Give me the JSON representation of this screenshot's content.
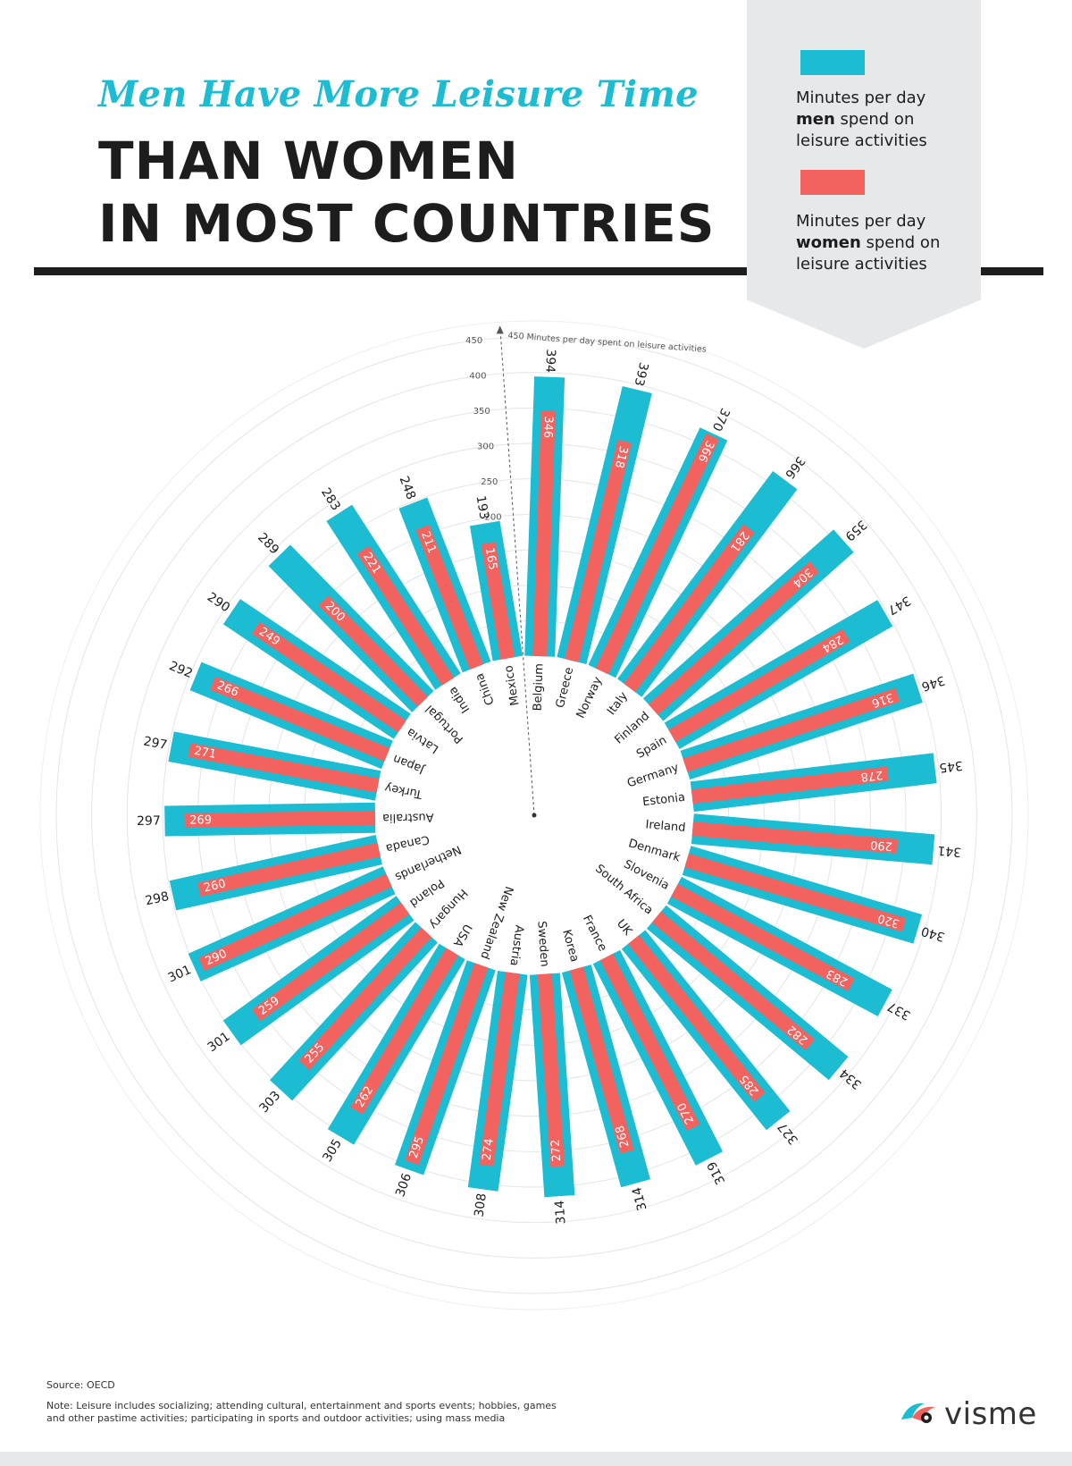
{
  "header": {
    "subtitle": "Men Have More Leisure Time",
    "title_line1": "THAN WOMEN",
    "title_line2": "IN MOST COUNTRIES"
  },
  "legend": {
    "men_pre": "Minutes per day",
    "men_bold": "men",
    "men_post1": " spend on",
    "men_post2": "leisure activities",
    "women_pre": "Minutes per day",
    "women_bold": "women",
    "women_post1": " spend on",
    "women_post2": "leisure activities"
  },
  "colors": {
    "men": "#1cbcd2",
    "women": "#f2625e",
    "accent_dark": "#1d1d1d"
  },
  "chart_data": {
    "type": "bar",
    "layout": "radial",
    "axis_label": "Minutes per day spent on leisure activities",
    "axis_ticks": [
      50,
      100,
      150,
      200,
      250,
      300,
      350,
      400,
      450
    ],
    "ylim": [
      0,
      450
    ],
    "grid": true,
    "legend_position": "top-right",
    "categories": [
      "Belgium",
      "Greece",
      "Norway",
      "Italy",
      "Finland",
      "Spain",
      "Germany",
      "Estonia",
      "Ireland",
      "Denmark",
      "Slovenia",
      "South Africa",
      "UK",
      "France",
      "Korea",
      "Sweden",
      "Austria",
      "New Zealand",
      "USA",
      "Hungary",
      "Poland",
      "Netherlands",
      "Canada",
      "Australia",
      "Turkey",
      "Japan",
      "Latvia",
      "Portugal",
      "India",
      "China",
      "Mexico"
    ],
    "series": [
      {
        "name": "Minutes per day men spend on leisure activities",
        "color": "#1cbcd2",
        "values": [
          394,
          393,
          370,
          366,
          359,
          347,
          346,
          345,
          341,
          340,
          337,
          334,
          327,
          319,
          314,
          314,
          308,
          306,
          305,
          303,
          301,
          301,
          298,
          297,
          297,
          292,
          290,
          289,
          283,
          248,
          193
        ]
      },
      {
        "name": "Minutes per day women spend on leisure activities",
        "color": "#f2625e",
        "values": [
          346,
          318,
          366,
          281,
          304,
          284,
          316,
          278,
          290,
          320,
          283,
          282,
          285,
          270,
          268,
          272,
          274,
          295,
          262,
          255,
          259,
          290,
          260,
          269,
          271,
          266,
          249,
          200,
          221,
          211,
          165
        ]
      }
    ]
  },
  "footer": {
    "source": "Source: OECD",
    "note": "Note: Leisure includes socializing; attending cultural, entertainment and sports events; hobbies, games and other pastime activities; participating in sports and outdoor activities; using mass media",
    "brand": "visme"
  }
}
